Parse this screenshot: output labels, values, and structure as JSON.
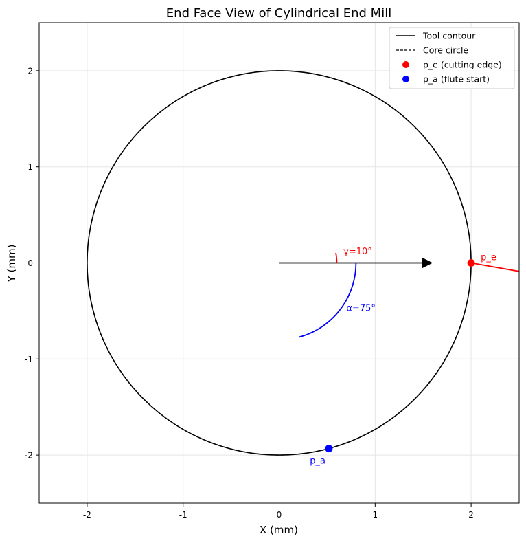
{
  "chart_data": {
    "type": "line",
    "title": "End Face View of Cylindrical End Mill",
    "xlabel": "X (mm)",
    "ylabel": "Y (mm)",
    "xlim": [
      -2.5,
      2.5
    ],
    "ylim": [
      -2.5,
      2.5
    ],
    "x_ticks": [
      -2,
      -1,
      0,
      1,
      2
    ],
    "y_ticks": [
      -2,
      -1,
      0,
      1,
      2
    ],
    "x_tick_labels": [
      "-2",
      "-1",
      "0",
      "1",
      "2"
    ],
    "y_tick_labels": [
      "-2",
      "-1",
      "0",
      "1",
      "2"
    ],
    "grid": true,
    "legend_position": "top-right",
    "tool_radius": 2.0,
    "core_radius": 2.0,
    "series": [
      {
        "name": "Tool contour",
        "style": "solid",
        "color": "#000000"
      },
      {
        "name": "Core circle",
        "style": "dashed",
        "color": "#000000"
      },
      {
        "name": "p_e (cutting edge)",
        "style": "marker",
        "color": "#ff0000",
        "x": 2.0,
        "y": 0.0
      },
      {
        "name": "p_a (flute start)",
        "style": "marker",
        "color": "#0000ff",
        "x": 0.518,
        "y": -1.932
      }
    ],
    "reference_arrow": {
      "from": [
        0,
        0
      ],
      "to": [
        1.6,
        0
      ],
      "color": "#000000"
    },
    "rake_line": {
      "from": [
        2.0,
        0.0
      ],
      "to": [
        2.5,
        -0.088
      ],
      "color": "#ff0000"
    },
    "gamma_arc": {
      "radius": 0.6,
      "start_deg": 0,
      "end_deg": 10,
      "color": "#ff0000"
    },
    "alpha_arc": {
      "radius": 0.8,
      "start_deg": 0,
      "end_deg": -75,
      "color": "#0000ff"
    },
    "annotations": [
      {
        "key": "gamma",
        "text": "γ=10°",
        "x": 0.67,
        "y": 0.09,
        "color": "#ff0000"
      },
      {
        "key": "alpha",
        "text": "α=75°",
        "x": 0.7,
        "y": -0.5,
        "color": "#0000ff"
      },
      {
        "key": "pe",
        "text": "p_e",
        "x": 2.1,
        "y": 0.03,
        "color": "#ff0000"
      },
      {
        "key": "pa",
        "text": "p_a",
        "x": 0.32,
        "y": -2.09,
        "color": "#0000ff"
      }
    ]
  }
}
